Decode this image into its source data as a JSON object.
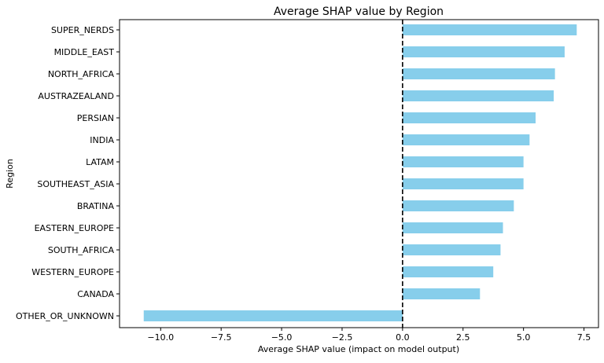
{
  "chart_data": {
    "type": "bar",
    "orientation": "horizontal",
    "title": "Average SHAP value by Region",
    "xlabel": "Average SHAP value (impact on model output)",
    "ylabel": "Region",
    "xlim": [
      -11.7,
      8.1
    ],
    "xticks": [
      -10.0,
      -7.5,
      -5.0,
      -2.5,
      0.0,
      2.5,
      5.0,
      7.5
    ],
    "xtick_labels": [
      "−10.0",
      "−7.5",
      "−5.0",
      "−2.5",
      "0.0",
      "2.5",
      "5.0",
      "7.5"
    ],
    "reference_line": {
      "x": 0,
      "style": "dashed",
      "color": "#000000"
    },
    "bar_color": "#87CEEB",
    "grid": false,
    "categories": [
      "SUPER_NERDS",
      "MIDDLE_EAST",
      "NORTH_AFRICA",
      "AUSTRAZEALAND",
      "PERSIAN",
      "INDIA",
      "LATAM",
      "SOUTHEAST_ASIA",
      "BRATINA",
      "EASTERN_EUROPE",
      "SOUTH_AFRICA",
      "WESTERN_EUROPE",
      "CANADA",
      "OTHER_OR_UNKNOWN"
    ],
    "values": [
      7.2,
      6.7,
      6.3,
      6.25,
      5.5,
      5.25,
      5.0,
      5.0,
      4.6,
      4.15,
      4.05,
      3.75,
      3.2,
      -10.7
    ]
  }
}
